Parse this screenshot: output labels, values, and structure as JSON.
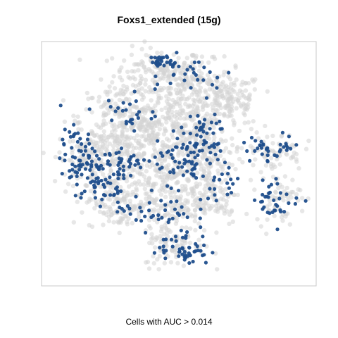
{
  "chart_data": {
    "type": "scatter",
    "title": "Foxs1_extended (15g)",
    "xlabel": "Cells with AUC > 0.014",
    "ylabel": "",
    "axes_visible": false,
    "frame": true,
    "grid": false,
    "legend": "none",
    "colors": {
      "background_cells": "#d4d4d4",
      "high_auc_cells": "#1f4e8c",
      "frame": "#c8c8c8"
    },
    "series": [
      {
        "name": "",
        "color": "#d4d4d4",
        "clusters": [
          {
            "cx": -8,
            "cy": 55,
            "sx": 12,
            "sy": 8,
            "n": 180
          },
          {
            "cx": 12,
            "cy": 45,
            "sx": 10,
            "sy": 9,
            "n": 160
          },
          {
            "cx": 30,
            "cy": 40,
            "sx": 8,
            "sy": 8,
            "n": 120
          },
          {
            "cx": -30,
            "cy": 30,
            "sx": 10,
            "sy": 10,
            "n": 140
          },
          {
            "cx": -15,
            "cy": 25,
            "sx": 12,
            "sy": 9,
            "n": 160
          },
          {
            "cx": 8,
            "cy": 22,
            "sx": 10,
            "sy": 9,
            "n": 140
          },
          {
            "cx": -45,
            "cy": 5,
            "sx": 8,
            "sy": 10,
            "n": 120
          },
          {
            "cx": -25,
            "cy": 5,
            "sx": 10,
            "sy": 9,
            "n": 140
          },
          {
            "cx": 0,
            "cy": 0,
            "sx": 10,
            "sy": 10,
            "n": 160
          },
          {
            "cx": 18,
            "cy": 5,
            "sx": 8,
            "sy": 8,
            "n": 100
          },
          {
            "cx": -30,
            "cy": -20,
            "sx": 9,
            "sy": 8,
            "n": 120
          },
          {
            "cx": -5,
            "cy": -22,
            "sx": 12,
            "sy": 8,
            "n": 140
          },
          {
            "cx": 20,
            "cy": -18,
            "sx": 8,
            "sy": 8,
            "n": 90
          },
          {
            "cx": 0,
            "cy": -45,
            "sx": 8,
            "sy": 7,
            "n": 90
          },
          {
            "cx": 52,
            "cy": 10,
            "sx": 8,
            "sy": 6,
            "n": 70
          },
          {
            "cx": 55,
            "cy": -18,
            "sx": 6,
            "sy": 7,
            "n": 60
          }
        ]
      },
      {
        "name": "",
        "color": "#1f4e8c",
        "clusters": [
          {
            "cx": -5,
            "cy": 63,
            "sx": 4,
            "sy": 2,
            "n": 30
          },
          {
            "cx": 10,
            "cy": 55,
            "sx": 10,
            "sy": 5,
            "n": 25
          },
          {
            "cx": -25,
            "cy": 33,
            "sx": 8,
            "sy": 6,
            "n": 25
          },
          {
            "cx": -50,
            "cy": 5,
            "sx": 5,
            "sy": 9,
            "n": 70
          },
          {
            "cx": -30,
            "cy": 2,
            "sx": 8,
            "sy": 6,
            "n": 50
          },
          {
            "cx": -40,
            "cy": -12,
            "sx": 6,
            "sy": 5,
            "n": 30
          },
          {
            "cx": 5,
            "cy": 5,
            "sx": 8,
            "sy": 8,
            "n": 60
          },
          {
            "cx": 15,
            "cy": 20,
            "sx": 6,
            "sy": 6,
            "n": 40
          },
          {
            "cx": -10,
            "cy": -25,
            "sx": 10,
            "sy": 6,
            "n": 40
          },
          {
            "cx": 5,
            "cy": -48,
            "sx": 7,
            "sy": 5,
            "n": 50
          },
          {
            "cx": 52,
            "cy": 12,
            "sx": 8,
            "sy": 4,
            "n": 35
          },
          {
            "cx": 54,
            "cy": -18,
            "sx": 6,
            "sy": 6,
            "n": 35
          },
          {
            "cx": 25,
            "cy": -5,
            "sx": 7,
            "sy": 8,
            "n": 25
          }
        ]
      }
    ],
    "xlim": [
      -70,
      75
    ],
    "ylim": [
      -70,
      75
    ]
  }
}
